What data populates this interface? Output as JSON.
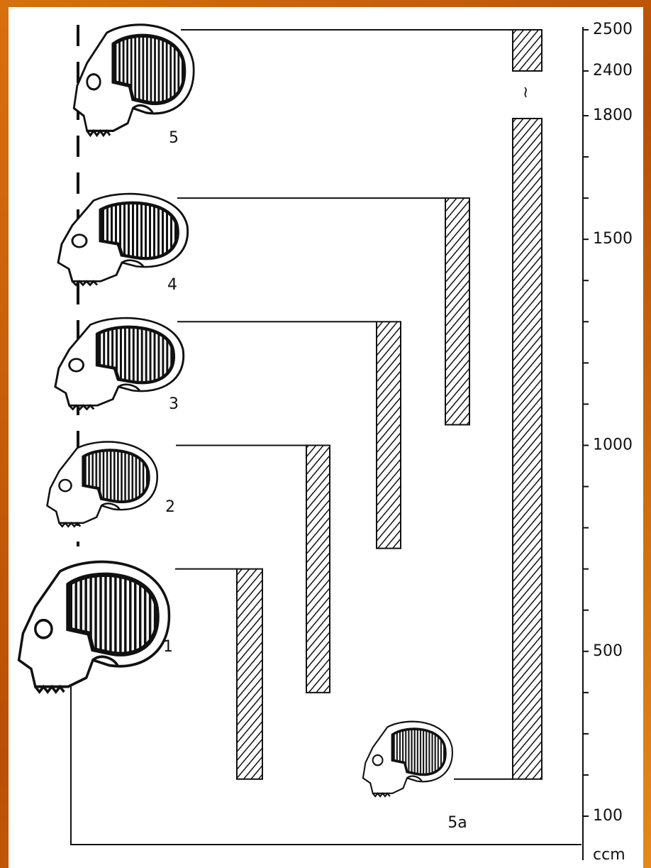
{
  "chart_data": {
    "type": "range-bar",
    "categories": [
      "1",
      "2",
      "3",
      "4",
      "5"
    ],
    "low": [
      190,
      400,
      750,
      1050,
      190
    ],
    "high": [
      700,
      1000,
      1300,
      1600,
      2500
    ],
    "annotation": "5a",
    "y_label": "ccm",
    "ylim": [
      100,
      2500
    ],
    "axis_break": [
      1800,
      2400
    ],
    "yticks": [
      100,
      500,
      1000,
      1500,
      1800,
      2400,
      2500
    ],
    "minor_yticks": [
      200,
      300,
      400,
      600,
      700,
      800,
      900,
      1100,
      1200,
      1300,
      1400,
      1600,
      1700
    ]
  }
}
